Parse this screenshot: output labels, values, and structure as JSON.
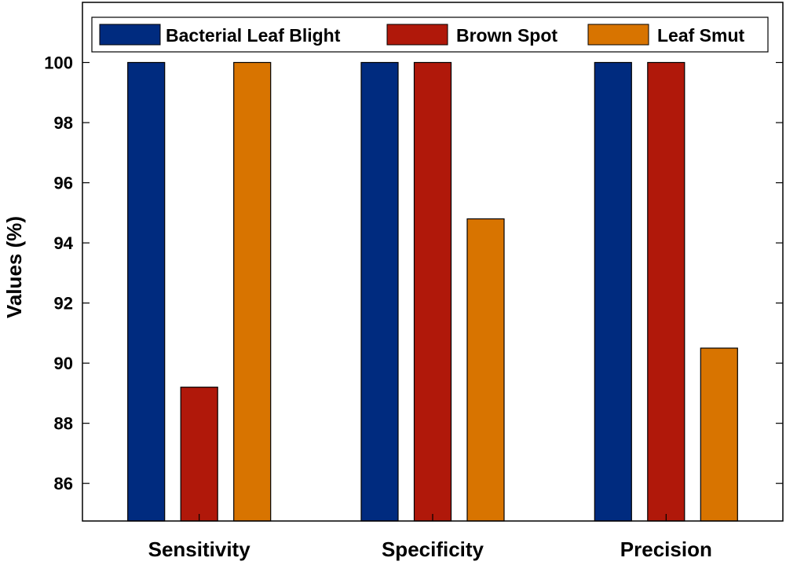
{
  "chart_data": {
    "type": "bar",
    "title": "",
    "xlabel": "",
    "ylabel": "Values (%)",
    "categories": [
      "Sensitivity",
      "Specificity",
      "Precision"
    ],
    "series": [
      {
        "name": "Bacterial Leaf Blight",
        "color": "#002b7f",
        "values": [
          100,
          100,
          100
        ]
      },
      {
        "name": "Brown Spot",
        "color": "#b0180a",
        "values": [
          89.2,
          100,
          100
        ]
      },
      {
        "name": "Leaf Smut",
        "color": "#d87400",
        "values": [
          100,
          94.8,
          90.5
        ]
      }
    ],
    "ylim": [
      84.75,
      102
    ],
    "yticks": [
      86,
      88,
      90,
      92,
      94,
      96,
      98,
      100
    ],
    "legend_position": "top",
    "grid": false
  }
}
